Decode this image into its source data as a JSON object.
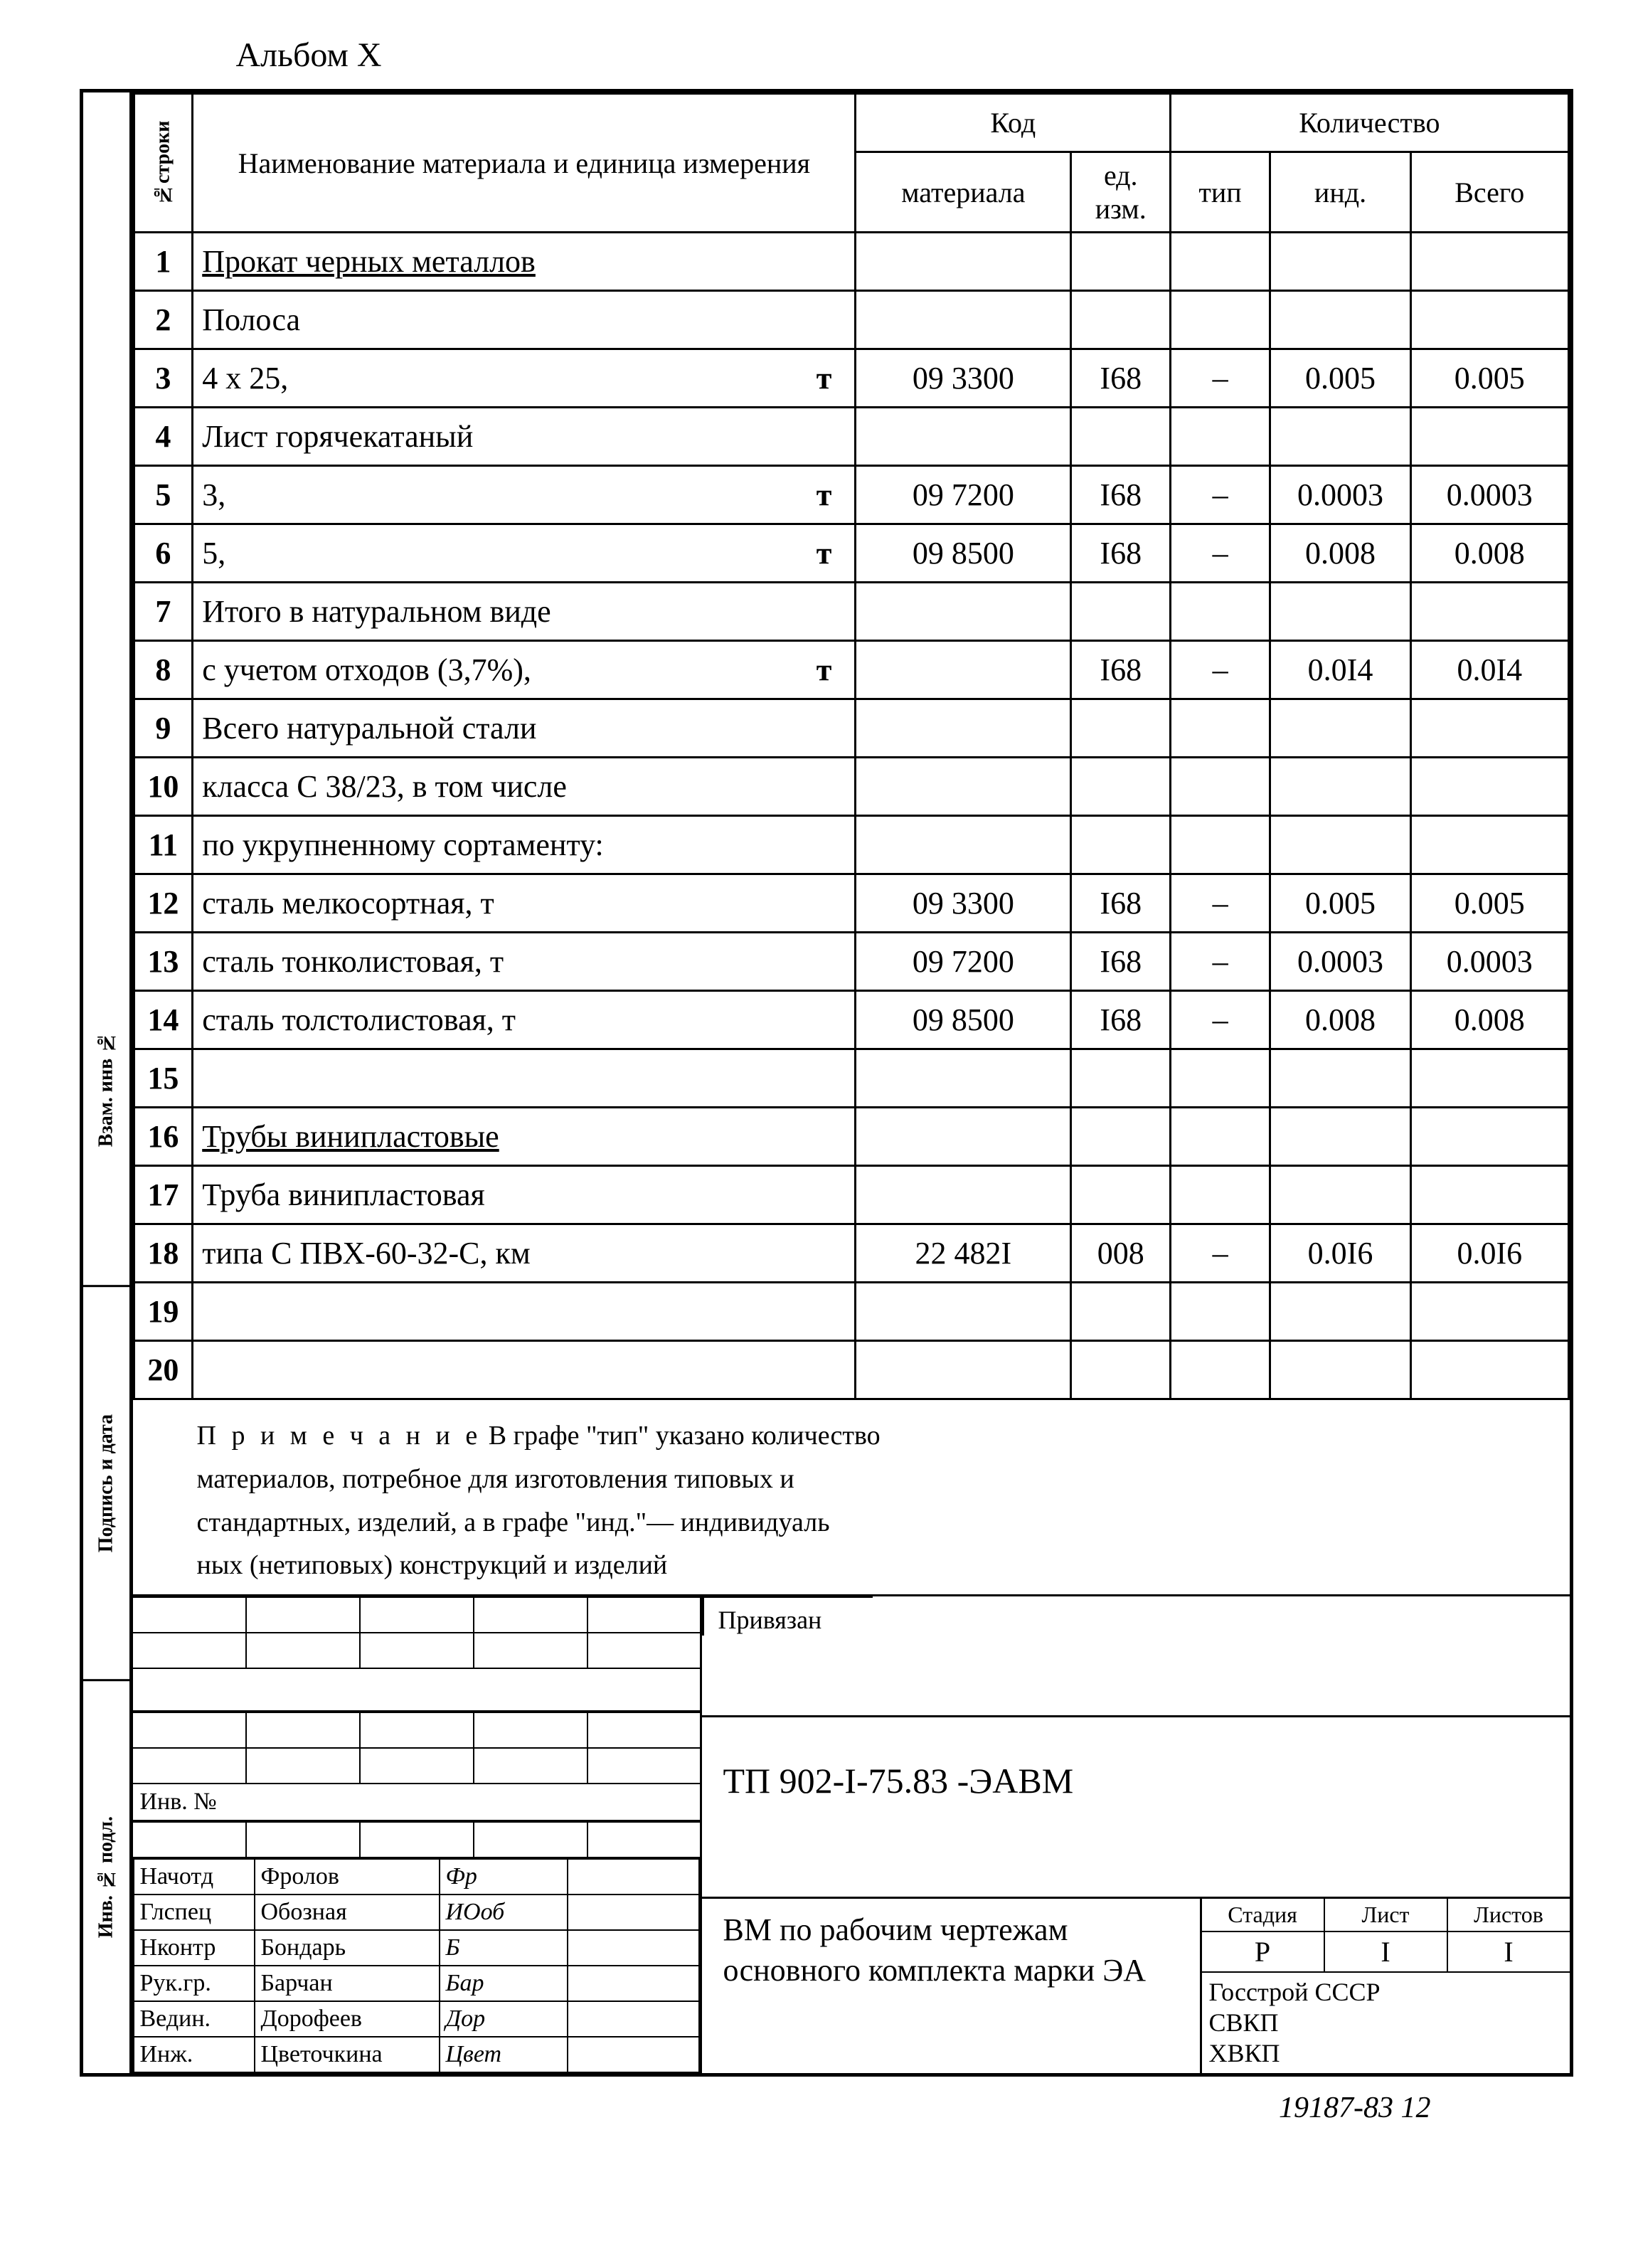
{
  "album": "Альбом X",
  "side_tabs": [
    "Инв. № подл.",
    "Подпись и дата",
    "Взам. инв №"
  ],
  "headers": {
    "rownum": "№строки",
    "name": "Наименование материала и единица измерения",
    "code": "Код",
    "material": "материала",
    "unit": "ед. изм.",
    "qty": "Количество",
    "tip": "тип",
    "ind": "инд.",
    "total": "Всего"
  },
  "rows": [
    {
      "n": "1",
      "name": "Прокат черных металлов",
      "underline": true
    },
    {
      "n": "2",
      "name": "Полоса"
    },
    {
      "n": "3",
      "name": "4 х 25,",
      "unit_t": "т",
      "code": "09 3300",
      "unit": "I68",
      "tip": "–",
      "ind": "0.005",
      "total": "0.005"
    },
    {
      "n": "4",
      "name": "Лист горячекатаный"
    },
    {
      "n": "5",
      "name": "3,",
      "unit_t": "т",
      "code": "09 7200",
      "unit": "I68",
      "tip": "–",
      "ind": "0.0003",
      "total": "0.0003"
    },
    {
      "n": "6",
      "name": "5,",
      "unit_t": "т",
      "code": "09 8500",
      "unit": "I68",
      "tip": "–",
      "ind": "0.008",
      "total": "0.008"
    },
    {
      "n": "7",
      "name": "Итого в натуральном виде"
    },
    {
      "n": "8",
      "name": "с учетом отходов (3,7%),",
      "unit_t": "т",
      "code": "",
      "unit": "I68",
      "tip": "–",
      "ind": "0.0I4",
      "total": "0.0I4"
    },
    {
      "n": "9",
      "name": "Всего натуральной стали"
    },
    {
      "n": "10",
      "name": "класса С 38/23, в том числе"
    },
    {
      "n": "11",
      "name": "по укрупненному сортаменту:"
    },
    {
      "n": "12",
      "name": "сталь мелкосортная, т",
      "code": "09 3300",
      "unit": "I68",
      "tip": "–",
      "ind": "0.005",
      "total": "0.005"
    },
    {
      "n": "13",
      "name": "сталь тонколистовая,  т",
      "code": "09 7200",
      "unit": "I68",
      "tip": "–",
      "ind": "0.0003",
      "total": "0.0003"
    },
    {
      "n": "14",
      "name": "сталь толстолистовая, т",
      "code": "09 8500",
      "unit": "I68",
      "tip": "–",
      "ind": "0.008",
      "total": "0.008"
    },
    {
      "n": "15",
      "name": ""
    },
    {
      "n": "16",
      "name": "Трубы  винипластовые",
      "underline": true
    },
    {
      "n": "17",
      "name": "Труба винипластовая"
    },
    {
      "n": "18",
      "name": "типа С ПВХ-60-32-С, км",
      "code": "22 482I",
      "unit": "008",
      "tip": "–",
      "ind": "0.0I6",
      "total": "0.0I6"
    },
    {
      "n": "19",
      "name": ""
    },
    {
      "n": "20",
      "name": ""
    }
  ],
  "note": {
    "label": "П р и м е ч а н и е",
    "text1": "В графе \"тип\" указано количество",
    "text2": "материалов, потребное для изготовления типовых и",
    "text3": "стандартных, изделий, а в графе \"инд.\"— индивидуаль",
    "text4": "ных (нетиповых) конструкций и изделий"
  },
  "privyazan": "Привязан",
  "inv_label": "Инв. №",
  "signatures": [
    {
      "role": "Начотд",
      "name": "Фролов",
      "sig": "Фр"
    },
    {
      "role": "Глспец",
      "name": "Обозная",
      "sig": "ИОоб"
    },
    {
      "role": "Нконтр",
      "name": "Бондарь",
      "sig": "Б"
    },
    {
      "role": "Рук.гр.",
      "name": "Барчан",
      "sig": "Бар"
    },
    {
      "role": "Ведин.",
      "name": "Дорофеев",
      "sig": "Дор"
    },
    {
      "role": "Инж.",
      "name": "Цветочкина",
      "sig": "Цвет"
    }
  ],
  "doc_code": "ТП 902-I-75.83 -ЭАВМ",
  "doc_title": "ВМ по рабочим чертежам основного комплекта марки ЭА",
  "stage": {
    "h1": "Стадия",
    "h2": "Лист",
    "h3": "Листов",
    "v1": "Р",
    "v2": "I",
    "v3": "I"
  },
  "org": [
    "Госстрой СССР",
    "СВКП",
    "ХВКП"
  ],
  "footer": "19187-83    12"
}
